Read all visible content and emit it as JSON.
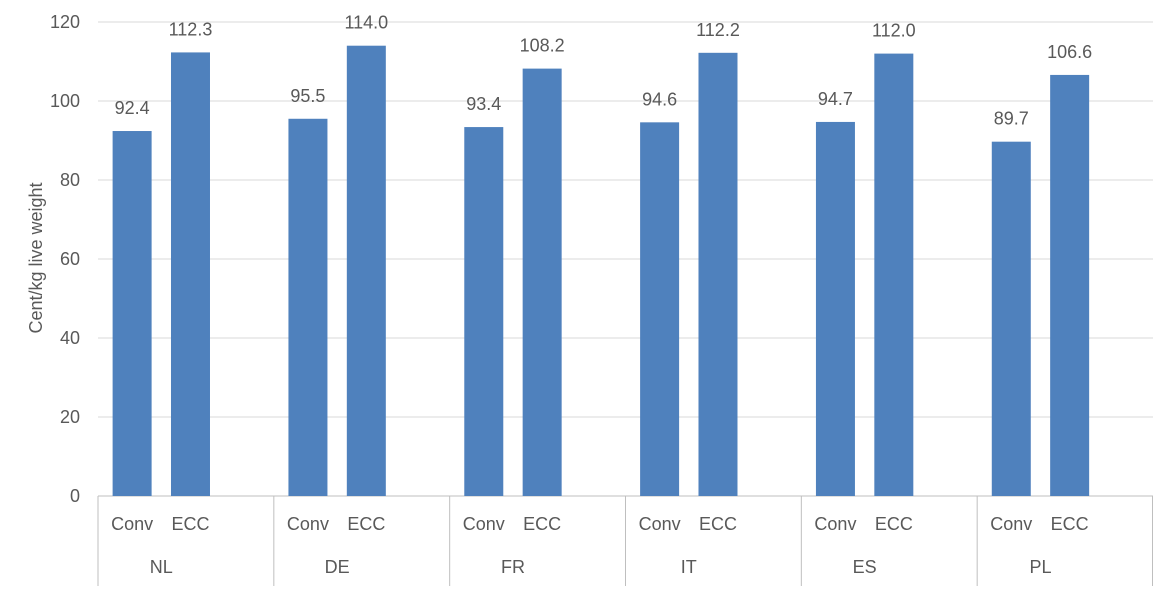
{
  "chart_data": {
    "type": "bar",
    "ylabel": "Cent/kg live weight",
    "ylim": [
      0,
      120
    ],
    "yticks": [
      0,
      20,
      40,
      60,
      80,
      100,
      120
    ],
    "grid": true,
    "groups": [
      {
        "name": "NL",
        "categories": [
          "Conv",
          "ECC"
        ],
        "values": [
          92.4,
          112.3
        ],
        "labels": [
          "92.4",
          "112.3"
        ]
      },
      {
        "name": "DE",
        "categories": [
          "Conv",
          "ECC"
        ],
        "values": [
          95.5,
          114.0
        ],
        "labels": [
          "95.5",
          "114.0"
        ]
      },
      {
        "name": "FR",
        "categories": [
          "Conv",
          "ECC"
        ],
        "values": [
          93.4,
          108.2
        ],
        "labels": [
          "93.4",
          "108.2"
        ]
      },
      {
        "name": "IT",
        "categories": [
          "Conv",
          "ECC"
        ],
        "values": [
          94.6,
          112.2
        ],
        "labels": [
          "94.6",
          "112.2"
        ]
      },
      {
        "name": "ES",
        "categories": [
          "Conv",
          "ECC"
        ],
        "values": [
          94.7,
          112.0
        ],
        "labels": [
          "94.7",
          "112.0"
        ]
      },
      {
        "name": "PL",
        "categories": [
          "Conv",
          "ECC"
        ],
        "values": [
          89.7,
          106.6
        ],
        "labels": [
          "89.7",
          "106.6"
        ]
      }
    ],
    "bar_color": "#4f81bd",
    "grid_color": "#d9d9d9"
  }
}
